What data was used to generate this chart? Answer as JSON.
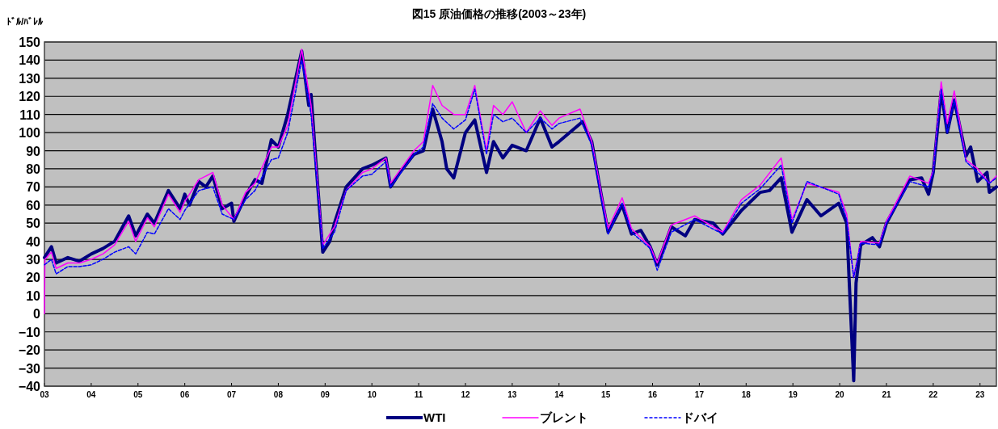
{
  "chart_data": {
    "type": "line",
    "title": "図15 原油価格の推移(2003～23年)",
    "ylabel": "ﾄﾞﾙ/ﾊﾞﾚﾙ",
    "xlim": [
      2003,
      2023.35
    ],
    "ylim": [
      -40,
      150
    ],
    "xticks": [
      {
        "value": 2003,
        "label": "03"
      },
      {
        "value": 2004,
        "label": "04"
      },
      {
        "value": 2005,
        "label": "05"
      },
      {
        "value": 2006,
        "label": "06"
      },
      {
        "value": 2007,
        "label": "07"
      },
      {
        "value": 2008,
        "label": "08"
      },
      {
        "value": 2009,
        "label": "09"
      },
      {
        "value": 2010,
        "label": "10"
      },
      {
        "value": 2011,
        "label": "11"
      },
      {
        "value": 2012,
        "label": "12"
      },
      {
        "value": 2013,
        "label": "13"
      },
      {
        "value": 2014,
        "label": "14"
      },
      {
        "value": 2015,
        "label": "15"
      },
      {
        "value": 2016,
        "label": "16"
      },
      {
        "value": 2017,
        "label": "17"
      },
      {
        "value": 2018,
        "label": "18"
      },
      {
        "value": 2019,
        "label": "19"
      },
      {
        "value": 2020,
        "label": "20"
      },
      {
        "value": 2021,
        "label": "21"
      },
      {
        "value": 2022,
        "label": "22"
      },
      {
        "value": 2023,
        "label": "23"
      }
    ],
    "yticks": [
      -40,
      -30,
      -20,
      -10,
      0,
      10,
      20,
      30,
      40,
      50,
      60,
      70,
      80,
      90,
      100,
      110,
      120,
      130,
      140,
      150
    ],
    "grid": "y",
    "legend": "bottom",
    "series": [
      {
        "name": "WTI",
        "color": "#000080",
        "line_style": "solid",
        "x": [
          2003.0,
          2003.15,
          2003.25,
          2003.5,
          2003.75,
          2004.0,
          2004.25,
          2004.5,
          2004.8,
          2004.95,
          2005.2,
          2005.35,
          2005.65,
          2005.9,
          2006.0,
          2006.1,
          2006.3,
          2006.45,
          2006.6,
          2006.8,
          2007.0,
          2007.05,
          2007.3,
          2007.5,
          2007.65,
          2007.85,
          2008.0,
          2008.2,
          2008.5,
          2008.65,
          2008.7,
          2008.8,
          2008.95,
          2009.1,
          2009.2,
          2009.45,
          2009.8,
          2010.0,
          2010.3,
          2010.4,
          2010.6,
          2010.9,
          2011.1,
          2011.3,
          2011.5,
          2011.6,
          2011.75,
          2012.0,
          2012.2,
          2012.45,
          2012.6,
          2012.8,
          2013.0,
          2013.3,
          2013.6,
          2013.85,
          2014.0,
          2014.5,
          2014.7,
          2014.9,
          2015.05,
          2015.35,
          2015.55,
          2015.75,
          2015.95,
          2016.1,
          2016.4,
          2016.7,
          2016.9,
          2017.3,
          2017.5,
          2017.9,
          2018.3,
          2018.5,
          2018.75,
          2018.98,
          2019.3,
          2019.6,
          2019.98,
          2020.15,
          2020.2,
          2020.3,
          2020.35,
          2020.45,
          2020.7,
          2020.85,
          2021.0,
          2021.5,
          2021.75,
          2021.9,
          2022.0,
          2022.17,
          2022.3,
          2022.45,
          2022.7,
          2022.8,
          2022.95,
          2023.15,
          2023.2,
          2023.35
        ],
        "values": [
          31,
          37,
          28,
          31,
          29,
          33,
          36,
          40,
          54,
          43,
          55,
          50,
          68,
          58,
          66,
          60,
          73,
          70,
          76,
          58,
          61,
          51,
          65,
          74,
          72,
          96,
          92,
          110,
          145,
          115,
          121,
          85,
          34,
          40,
          50,
          70,
          80,
          82,
          86,
          70,
          78,
          88,
          90,
          113,
          95,
          80,
          75,
          100,
          107,
          78,
          95,
          86,
          93,
          90,
          108,
          92,
          95,
          106,
          95,
          66,
          45,
          60,
          44,
          46,
          37,
          27,
          48,
          43,
          52,
          50,
          44,
          57,
          67,
          68,
          75,
          45,
          63,
          54,
          61,
          50,
          20,
          -37,
          17,
          38,
          42,
          37,
          50,
          74,
          75,
          66,
          78,
          123,
          100,
          118,
          87,
          92,
          73,
          78,
          67,
          70
        ]
      },
      {
        "name": "ブレント",
        "color": "#ff00ff",
        "line_style": "solid",
        "x": [
          2003.0,
          2003.01,
          2003.15,
          2003.25,
          2003.5,
          2003.75,
          2004.0,
          2004.25,
          2004.5,
          2004.8,
          2004.95,
          2005.2,
          2005.35,
          2005.65,
          2005.9,
          2006.0,
          2006.3,
          2006.6,
          2006.8,
          2007.05,
          2007.3,
          2007.5,
          2007.85,
          2008.0,
          2008.2,
          2008.5,
          2008.7,
          2008.95,
          2009.2,
          2009.45,
          2009.8,
          2010.0,
          2010.3,
          2010.4,
          2010.9,
          2011.1,
          2011.3,
          2011.5,
          2011.75,
          2012.0,
          2012.2,
          2012.45,
          2012.6,
          2012.8,
          2013.0,
          2013.3,
          2013.6,
          2013.85,
          2014.0,
          2014.45,
          2014.7,
          2014.9,
          2015.05,
          2015.35,
          2015.55,
          2015.95,
          2016.1,
          2016.4,
          2016.9,
          2017.5,
          2017.9,
          2018.3,
          2018.75,
          2018.98,
          2019.3,
          2019.98,
          2020.15,
          2020.3,
          2020.45,
          2020.85,
          2021.0,
          2021.5,
          2021.9,
          2022.0,
          2022.17,
          2022.3,
          2022.45,
          2022.7,
          2022.95,
          2023.2,
          2023.35
        ],
        "values": [
          0,
          30,
          34,
          25,
          28,
          28,
          30,
          33,
          38,
          51,
          40,
          53,
          48,
          66,
          56,
          62,
          74,
          78,
          60,
          52,
          67,
          72,
          92,
          92,
          104,
          146,
          115,
          38,
          48,
          68,
          78,
          80,
          86,
          72,
          90,
          95,
          126,
          115,
          110,
          110,
          126,
          90,
          115,
          110,
          117,
          100,
          112,
          104,
          108,
          113,
          95,
          67,
          47,
          64,
          47,
          37,
          28,
          49,
          54,
          45,
          63,
          71,
          86,
          52,
          72,
          67,
          55,
          20,
          40,
          39,
          51,
          76,
          72,
          79,
          128,
          105,
          123,
          85,
          80,
          72,
          76
        ]
      },
      {
        "name": "ドバイ",
        "color": "#0000ff",
        "line_style": "dashed",
        "x": [
          2003.0,
          2003.15,
          2003.25,
          2003.5,
          2003.75,
          2004.0,
          2004.25,
          2004.5,
          2004.8,
          2004.95,
          2005.2,
          2005.35,
          2005.65,
          2005.9,
          2006.0,
          2006.3,
          2006.6,
          2006.8,
          2007.05,
          2007.3,
          2007.5,
          2007.85,
          2008.0,
          2008.2,
          2008.5,
          2008.7,
          2008.95,
          2009.2,
          2009.45,
          2009.8,
          2010.0,
          2010.3,
          2010.4,
          2010.9,
          2011.1,
          2011.3,
          2011.5,
          2011.75,
          2012.0,
          2012.2,
          2012.45,
          2012.6,
          2012.8,
          2013.0,
          2013.3,
          2013.6,
          2013.85,
          2014.0,
          2014.45,
          2014.7,
          2014.9,
          2015.05,
          2015.35,
          2015.55,
          2015.95,
          2016.1,
          2016.4,
          2016.9,
          2017.5,
          2017.9,
          2018.3,
          2018.75,
          2018.98,
          2019.3,
          2019.98,
          2020.15,
          2020.3,
          2020.45,
          2020.85,
          2021.0,
          2021.5,
          2021.9,
          2022.0,
          2022.17,
          2022.3,
          2022.45,
          2022.7,
          2022.95,
          2023.2,
          2023.35
        ],
        "values": [
          27,
          30,
          22,
          26,
          26,
          27,
          30,
          34,
          37,
          33,
          45,
          44,
          58,
          52,
          57,
          68,
          70,
          55,
          52,
          63,
          68,
          85,
          86,
          100,
          140,
          110,
          36,
          45,
          68,
          76,
          77,
          84,
          70,
          88,
          92,
          116,
          108,
          102,
          107,
          124,
          88,
          110,
          106,
          108,
          100,
          108,
          102,
          105,
          108,
          93,
          64,
          44,
          61,
          45,
          36,
          24,
          45,
          52,
          44,
          61,
          69,
          82,
          50,
          73,
          66,
          52,
          20,
          39,
          38,
          50,
          73,
          70,
          78,
          124,
          100,
          118,
          84,
          78,
          72,
          75
        ]
      }
    ]
  }
}
